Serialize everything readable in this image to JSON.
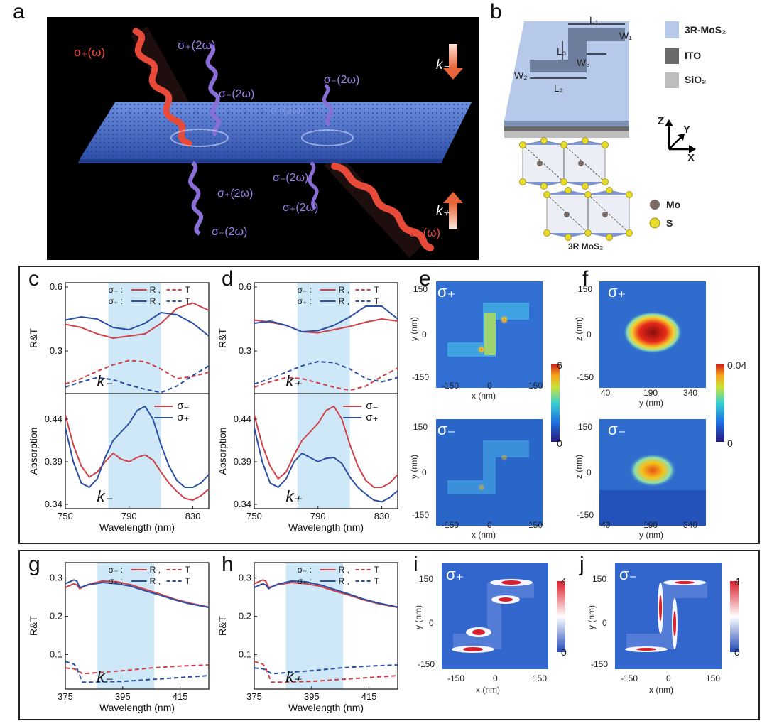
{
  "panels": {
    "a": {
      "label": "a",
      "texts": {
        "sp_w": "σ₊(ω)",
        "sp_2w_top": "σ₊(2ω)",
        "sm_2w_1": "σ₋(2ω)",
        "sm_2w_2": "σ₋(2ω)",
        "sp_2w_faint": "σ₊(2ω)",
        "sp_2w_b1": "σ₊(2ω)",
        "sm_2w_b2": "σ₋(2ω)",
        "sm_2w_b3": "σ₋(2ω)",
        "sp_2w_b4": "σ₊(2ω)",
        "sp_w_b": "σ₊(ω)",
        "k_minus": "k₋",
        "k_plus": "k₊"
      }
    },
    "b": {
      "label": "b",
      "dims": {
        "L1": "L₁",
        "W1": "W₁",
        "L3": "L₃",
        "W3": "W₃",
        "W2": "W₂",
        "L2": "L₂"
      },
      "legend": [
        {
          "name": "3R-MoS₂",
          "color": "#b7c9ea"
        },
        {
          "name": "ITO",
          "color": "#6a6a6a"
        },
        {
          "name": "SiO₂",
          "color": "#bdbdbd"
        }
      ],
      "axes": {
        "z": "Z",
        "y": "Y",
        "x": "X"
      },
      "atoms": [
        {
          "name": "Mo",
          "color": "#7a6a64"
        },
        {
          "name": "S",
          "color": "#e8dc2a"
        }
      ],
      "crystal_label": "3R MoS₂"
    },
    "c": {
      "label": "c"
    },
    "d": {
      "label": "d"
    },
    "e": {
      "label": "e",
      "top_tag": "σ₊",
      "bot_tag": "σ₋",
      "xlabel": "x (nm)",
      "ylabel": "y (nm)",
      "xticks": [
        "-150",
        "0",
        "150"
      ],
      "yticks": [
        "150",
        "0",
        "-150"
      ],
      "cbar": [
        "6",
        "0"
      ]
    },
    "f": {
      "label": "f",
      "top_tag": "σ₊",
      "bot_tag": "σ₋",
      "xlabel": "y (nm)",
      "ylabel": "z (nm)",
      "xticks": [
        "40",
        "190",
        "340"
      ],
      "yticks": [
        "150",
        "0",
        "-150"
      ],
      "cbar": [
        "0.04",
        "0"
      ]
    },
    "g": {
      "label": "g"
    },
    "h": {
      "label": "h"
    },
    "i": {
      "label": "i",
      "tag": "σ₊",
      "xlabel": "x (nm)",
      "ylabel": "y (nm)",
      "xticks": [
        "-150",
        "0",
        "150"
      ],
      "yticks": [
        "150",
        "0",
        "-150"
      ],
      "cbar": [
        "4",
        "0"
      ]
    },
    "j": {
      "label": "j",
      "tag": "σ₋",
      "xlabel": "x (nm)",
      "ylabel": "y (nm)",
      "xticks": [
        "-150",
        "0",
        "150"
      ],
      "yticks": [
        "150",
        "0",
        "-150"
      ],
      "cbar": [
        "4",
        "0"
      ]
    }
  },
  "chart_data": [
    {
      "id": "c-top",
      "type": "line",
      "ylabel": "R&T",
      "ylim": [
        0.1,
        0.62
      ],
      "yticks": [
        0.3,
        0.6
      ],
      "xlim": [
        750,
        840
      ],
      "shade": [
        777,
        810
      ],
      "annotation": "k₋",
      "legend": [
        {
          "prefix": "σ₋ :",
          "items": [
            "R ,",
            "T"
          ],
          "color": "#d0404a"
        },
        {
          "prefix": "σ₊ :",
          "items": [
            "R ,",
            "T"
          ],
          "color": "#2c4fa3"
        }
      ],
      "series": [
        {
          "name": "σ₋ R",
          "color": "#d0404a",
          "dash": false,
          "x": [
            750,
            760,
            770,
            780,
            790,
            800,
            810,
            820,
            830,
            840
          ],
          "y": [
            0.425,
            0.41,
            0.38,
            0.36,
            0.37,
            0.38,
            0.43,
            0.5,
            0.525,
            0.49
          ]
        },
        {
          "name": "σ₊ R",
          "color": "#2c4fa3",
          "dash": false,
          "x": [
            750,
            760,
            770,
            780,
            790,
            800,
            810,
            820,
            830,
            840
          ],
          "y": [
            0.445,
            0.46,
            0.45,
            0.41,
            0.4,
            0.43,
            0.48,
            0.47,
            0.43,
            0.37
          ]
        },
        {
          "name": "σ₋ T",
          "color": "#d0404a",
          "dash": true,
          "x": [
            750,
            760,
            770,
            780,
            790,
            800,
            810,
            820,
            830,
            840
          ],
          "y": [
            0.145,
            0.17,
            0.205,
            0.235,
            0.255,
            0.25,
            0.215,
            0.17,
            0.18,
            0.2
          ]
        },
        {
          "name": "σ₊ T",
          "color": "#2c4fa3",
          "dash": true,
          "x": [
            750,
            760,
            770,
            780,
            790,
            800,
            810,
            820,
            830,
            840
          ],
          "y": [
            0.13,
            0.155,
            0.175,
            0.165,
            0.14,
            0.12,
            0.105,
            0.135,
            0.185,
            0.23
          ]
        }
      ]
    },
    {
      "id": "c-bot",
      "type": "line",
      "xlabel": "Wavelength (nm)",
      "ylabel": "Absorption",
      "ylim": [
        0.335,
        0.47
      ],
      "yticks": [
        0.34,
        0.39,
        0.44
      ],
      "xlim": [
        750,
        840
      ],
      "xticks": [
        750,
        790,
        830
      ],
      "shade": [
        777,
        810
      ],
      "annotation": "k₋",
      "legend": [
        {
          "name": "σ₋",
          "color": "#d0404a"
        },
        {
          "name": "σ₊",
          "color": "#2c4fa3"
        }
      ],
      "series": [
        {
          "name": "σ₋",
          "color": "#d0404a",
          "x": [
            750,
            755,
            760,
            765,
            770,
            775,
            780,
            785,
            790,
            795,
            800,
            805,
            810,
            815,
            820,
            825,
            830,
            835,
            840
          ],
          "y": [
            0.445,
            0.41,
            0.385,
            0.372,
            0.378,
            0.39,
            0.4,
            0.393,
            0.39,
            0.395,
            0.398,
            0.392,
            0.378,
            0.365,
            0.355,
            0.347,
            0.345,
            0.35,
            0.358
          ]
        },
        {
          "name": "σ₊",
          "color": "#2c4fa3",
          "x": [
            750,
            755,
            760,
            765,
            770,
            775,
            780,
            785,
            790,
            795,
            800,
            805,
            810,
            815,
            820,
            825,
            830,
            835,
            840
          ],
          "y": [
            0.43,
            0.39,
            0.365,
            0.36,
            0.37,
            0.395,
            0.415,
            0.425,
            0.435,
            0.45,
            0.455,
            0.44,
            0.41,
            0.385,
            0.368,
            0.36,
            0.36,
            0.365,
            0.375
          ]
        }
      ]
    },
    {
      "id": "d-top",
      "type": "line",
      "ylabel": "R&T",
      "ylim": [
        0.1,
        0.62
      ],
      "yticks": [
        0.3,
        0.6
      ],
      "xlim": [
        750,
        840
      ],
      "shade": [
        777,
        810
      ],
      "annotation": "k₊",
      "legend": [
        {
          "prefix": "σ₋ :",
          "items": [
            "R ,",
            "T"
          ],
          "color": "#d0404a"
        },
        {
          "prefix": "σ₊ :",
          "items": [
            "R ,",
            "T"
          ],
          "color": "#2c4fa3"
        }
      ],
      "series": [
        {
          "name": "σ₋ R",
          "color": "#d0404a",
          "dash": false,
          "x": [
            750,
            760,
            770,
            780,
            790,
            800,
            810,
            820,
            830,
            840
          ],
          "y": [
            0.445,
            0.435,
            0.42,
            0.39,
            0.385,
            0.4,
            0.415,
            0.435,
            0.45,
            0.44
          ]
        },
        {
          "name": "σ₊ R",
          "color": "#2c4fa3",
          "dash": false,
          "x": [
            750,
            760,
            770,
            780,
            790,
            800,
            810,
            820,
            830,
            840
          ],
          "y": [
            0.43,
            0.44,
            0.42,
            0.39,
            0.395,
            0.42,
            0.46,
            0.51,
            0.51,
            0.45
          ]
        },
        {
          "name": "σ₋ T",
          "color": "#d0404a",
          "dash": true,
          "x": [
            750,
            760,
            770,
            780,
            790,
            800,
            810,
            820,
            830,
            840
          ],
          "y": [
            0.13,
            0.155,
            0.175,
            0.17,
            0.15,
            0.13,
            0.115,
            0.135,
            0.18,
            0.22
          ]
        },
        {
          "name": "σ₊ T",
          "color": "#2c4fa3",
          "dash": true,
          "x": [
            750,
            760,
            770,
            780,
            790,
            800,
            810,
            820,
            830,
            840
          ],
          "y": [
            0.145,
            0.17,
            0.2,
            0.23,
            0.25,
            0.245,
            0.215,
            0.17,
            0.155,
            0.175
          ]
        }
      ]
    },
    {
      "id": "d-bot",
      "type": "line",
      "xlabel": "Wavelength (nm)",
      "ylabel": "Absorption",
      "ylim": [
        0.335,
        0.47
      ],
      "yticks": [
        0.34,
        0.39,
        0.44
      ],
      "xlim": [
        750,
        840
      ],
      "xticks": [
        750,
        790,
        830
      ],
      "shade": [
        777,
        810
      ],
      "annotation": "k₊",
      "legend": [
        {
          "name": "σ₋",
          "color": "#d0404a"
        },
        {
          "name": "σ₊",
          "color": "#2c4fa3"
        }
      ],
      "series": [
        {
          "name": "σ₋",
          "color": "#d0404a",
          "x": [
            750,
            755,
            760,
            765,
            770,
            775,
            780,
            785,
            790,
            795,
            800,
            805,
            810,
            815,
            820,
            825,
            830,
            835,
            840
          ],
          "y": [
            0.445,
            0.41,
            0.385,
            0.37,
            0.378,
            0.398,
            0.415,
            0.425,
            0.435,
            0.45,
            0.455,
            0.44,
            0.41,
            0.385,
            0.368,
            0.36,
            0.36,
            0.365,
            0.375
          ]
        },
        {
          "name": "σ₊",
          "color": "#2c4fa3",
          "x": [
            750,
            755,
            760,
            765,
            770,
            775,
            780,
            785,
            790,
            795,
            800,
            805,
            810,
            815,
            820,
            825,
            830,
            835,
            840
          ],
          "y": [
            0.43,
            0.39,
            0.365,
            0.36,
            0.37,
            0.39,
            0.4,
            0.395,
            0.39,
            0.394,
            0.395,
            0.388,
            0.372,
            0.36,
            0.352,
            0.345,
            0.343,
            0.348,
            0.356
          ]
        }
      ]
    },
    {
      "id": "g",
      "type": "line",
      "xlabel": "Wavelength (nm)",
      "ylabel": "R&T",
      "ylim": [
        0.01,
        0.34
      ],
      "yticks": [
        0.1,
        0.2,
        0.3
      ],
      "xlim": [
        375,
        425
      ],
      "xticks": [
        375,
        395,
        415
      ],
      "shade": [
        386,
        406
      ],
      "annotation": "k₋",
      "legend": [
        {
          "prefix": "σ₋ :",
          "items": [
            "R ,",
            "T"
          ],
          "color": "#d0404a"
        },
        {
          "prefix": "σ₊ :",
          "items": [
            "R ,",
            "T"
          ],
          "color": "#2c4fa3"
        }
      ],
      "series": [
        {
          "name": "σ₋ R",
          "color": "#d0404a",
          "dash": false,
          "x": [
            375,
            378,
            379,
            380,
            383,
            388,
            393,
            398,
            403,
            408,
            413,
            418,
            425
          ],
          "y": [
            0.275,
            0.285,
            0.282,
            0.272,
            0.283,
            0.292,
            0.29,
            0.282,
            0.27,
            0.258,
            0.245,
            0.235,
            0.224
          ]
        },
        {
          "name": "σ₊ R",
          "color": "#2c4fa3",
          "dash": false,
          "x": [
            375,
            378,
            379,
            380,
            383,
            388,
            393,
            398,
            403,
            408,
            413,
            418,
            425
          ],
          "y": [
            0.285,
            0.295,
            0.292,
            0.275,
            0.282,
            0.288,
            0.285,
            0.278,
            0.266,
            0.255,
            0.243,
            0.233,
            0.223
          ]
        },
        {
          "name": "σ₋ T",
          "color": "#d0404a",
          "dash": true,
          "x": [
            375,
            378,
            379,
            380,
            381,
            385,
            395,
            405,
            415,
            425
          ],
          "y": [
            0.065,
            0.063,
            0.06,
            0.055,
            0.05,
            0.052,
            0.058,
            0.065,
            0.07,
            0.073
          ]
        },
        {
          "name": "σ₊ T",
          "color": "#2c4fa3",
          "dash": true,
          "x": [
            375,
            378,
            379,
            380,
            381,
            385,
            395,
            405,
            415,
            425
          ],
          "y": [
            0.082,
            0.075,
            0.065,
            0.045,
            0.028,
            0.028,
            0.03,
            0.035,
            0.04,
            0.045
          ]
        }
      ]
    },
    {
      "id": "h",
      "type": "line",
      "xlabel": "Wavelength (nm)",
      "ylabel": "R&T",
      "ylim": [
        0.01,
        0.34
      ],
      "yticks": [
        0.1,
        0.2,
        0.3
      ],
      "xlim": [
        375,
        425
      ],
      "xticks": [
        375,
        395,
        415
      ],
      "shade": [
        386,
        406
      ],
      "annotation": "k₊",
      "legend": [
        {
          "prefix": "σ₋ :",
          "items": [
            "R ,",
            "T"
          ],
          "color": "#d0404a"
        },
        {
          "prefix": "σ₊ :",
          "items": [
            "R ,",
            "T"
          ],
          "color": "#2c4fa3"
        }
      ],
      "series": [
        {
          "name": "σ₋ R",
          "color": "#d0404a",
          "dash": false,
          "x": [
            375,
            378,
            379,
            380,
            383,
            388,
            393,
            398,
            403,
            408,
            413,
            418,
            425
          ],
          "y": [
            0.285,
            0.295,
            0.292,
            0.275,
            0.282,
            0.288,
            0.285,
            0.278,
            0.266,
            0.255,
            0.243,
            0.233,
            0.223
          ]
        },
        {
          "name": "σ₊ R",
          "color": "#2c4fa3",
          "dash": false,
          "x": [
            375,
            378,
            379,
            380,
            383,
            388,
            393,
            398,
            403,
            408,
            413,
            418,
            425
          ],
          "y": [
            0.275,
            0.285,
            0.282,
            0.272,
            0.283,
            0.292,
            0.29,
            0.282,
            0.27,
            0.258,
            0.245,
            0.235,
            0.224
          ]
        },
        {
          "name": "σ₋ T",
          "color": "#d0404a",
          "dash": true,
          "x": [
            375,
            378,
            379,
            380,
            381,
            385,
            395,
            405,
            415,
            425
          ],
          "y": [
            0.082,
            0.075,
            0.065,
            0.045,
            0.028,
            0.028,
            0.03,
            0.035,
            0.04,
            0.045
          ]
        },
        {
          "name": "σ₊ T",
          "color": "#2c4fa3",
          "dash": true,
          "x": [
            375,
            378,
            379,
            380,
            381,
            385,
            395,
            405,
            415,
            425
          ],
          "y": [
            0.065,
            0.063,
            0.06,
            0.055,
            0.05,
            0.052,
            0.058,
            0.065,
            0.07,
            0.073
          ]
        }
      ]
    }
  ]
}
